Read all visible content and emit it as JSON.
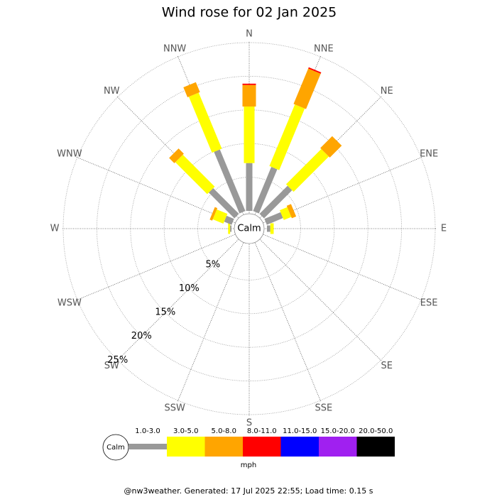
{
  "chart_data": {
    "type": "windrose",
    "title": "Wind rose for 02 Jan 2025",
    "directions": [
      "N",
      "NNE",
      "NE",
      "ENE",
      "E",
      "ESE",
      "SE",
      "SSE",
      "S",
      "SSW",
      "SW",
      "WSW",
      "W",
      "WNW",
      "NW",
      "NNW"
    ],
    "calm_label": "Calm",
    "unit": "mph",
    "footer": "@nw3weather. Generated: 17 Jul 2025 22:55; Load time: 0.15 s",
    "ylim": [
      0,
      25
    ],
    "yticks": [
      {
        "value": 5,
        "label": "5%"
      },
      {
        "value": 10,
        "label": "10%"
      },
      {
        "value": 15,
        "label": "15%"
      },
      {
        "value": 20,
        "label": "20%"
      },
      {
        "value": 25,
        "label": "25%"
      }
    ],
    "series": [
      {
        "name": "1.0-3.0",
        "color": "#999999",
        "values": [
          7.1,
          7.1,
          5.9,
          2.6,
          0.5,
          0,
          0,
          0,
          0,
          0,
          0,
          0,
          0.2,
          1.2,
          5.4,
          9.9
        ]
      },
      {
        "name": "3.0-5.0",
        "color": "#ffff00",
        "values": [
          8.4,
          9.9,
          7.4,
          1.2,
          0.5,
          0,
          0,
          0,
          0,
          0,
          0,
          0,
          0.3,
          1.7,
          6.7,
          9.0
        ]
      },
      {
        "name": "5.0-8.0",
        "color": "#ffa500",
        "values": [
          3.2,
          5.7,
          2.5,
          0.7,
          0,
          0,
          0,
          0,
          0,
          0,
          0,
          0,
          0,
          0.4,
          1.1,
          1.6
        ]
      },
      {
        "name": "8.0-11.0",
        "color": "#ff0000",
        "values": [
          0.2,
          0.2,
          0,
          0,
          0,
          0,
          0,
          0,
          0,
          0,
          0,
          0,
          0,
          0,
          0,
          0
        ]
      },
      {
        "name": "11.0-15.0",
        "color": "#0000ff",
        "values": [
          0,
          0,
          0,
          0,
          0,
          0,
          0,
          0,
          0,
          0,
          0,
          0,
          0,
          0,
          0,
          0
        ]
      },
      {
        "name": "15.0-20.0",
        "color": "#a020f0",
        "values": [
          0,
          0,
          0,
          0,
          0,
          0,
          0,
          0,
          0,
          0,
          0,
          0,
          0,
          0,
          0,
          0
        ]
      },
      {
        "name": "20.0-50.0",
        "color": "#000000",
        "values": [
          0,
          0,
          0,
          0,
          0,
          0,
          0,
          0,
          0,
          0,
          0,
          0,
          0,
          0,
          0,
          0
        ]
      }
    ]
  }
}
